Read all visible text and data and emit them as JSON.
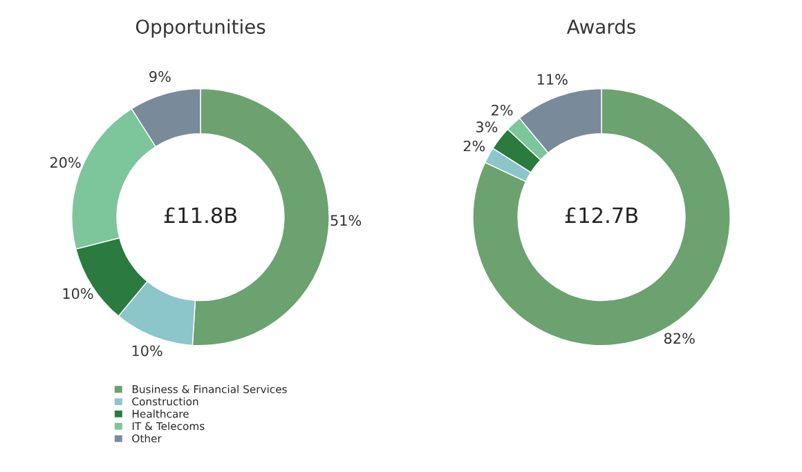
{
  "chart_data": [
    {
      "type": "donut",
      "title": "Opportunities",
      "categories": [
        "Business & Financial Services",
        "Construction",
        "Healthcare",
        "IT & Telecoms",
        "Other"
      ],
      "values": [
        51,
        10,
        10,
        20,
        9
      ],
      "value_labels": [
        "51%",
        "10%",
        "10%",
        "20%",
        "9%"
      ],
      "colors": [
        "#6ba26f",
        "#8cc5ca",
        "#2b7a3f",
        "#7dc59b",
        "#798b9b"
      ],
      "annotations": [
        "£11.8B"
      ],
      "legend": "bottom"
    },
    {
      "type": "donut",
      "title": "Awards",
      "categories": [
        null,
        null,
        null,
        null,
        null
      ],
      "values": [
        82,
        2,
        3,
        2,
        11
      ],
      "value_labels": [
        "82%",
        "2%",
        "3%",
        "2%",
        "11%"
      ],
      "colors": [
        "#6ba26f",
        "#8cc5ca",
        "#2b7a3f",
        "#7dc59b",
        "#798b9b"
      ],
      "annotations": [
        "£12.7B"
      ],
      "legend": false
    }
  ]
}
